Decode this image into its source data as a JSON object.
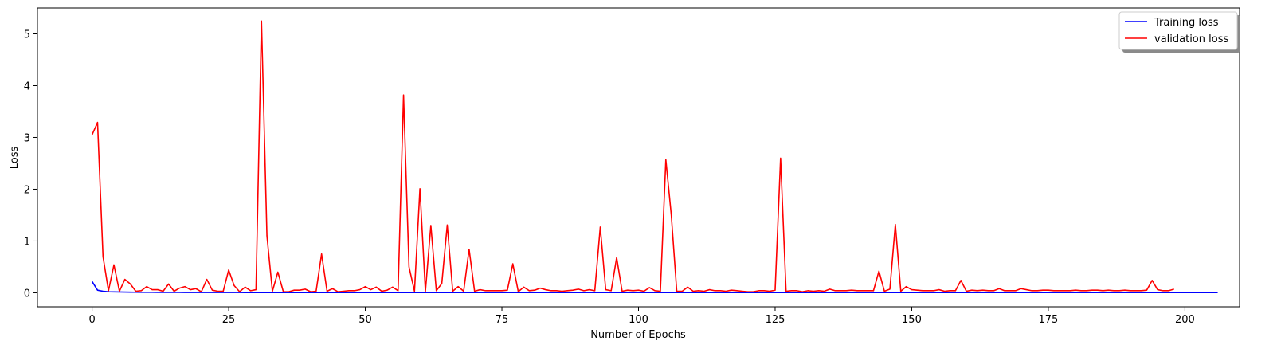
{
  "chart_data": {
    "type": "line",
    "title": "",
    "xlabel": "Number of Epochs",
    "ylabel": "Loss",
    "xlim": [
      -10,
      210
    ],
    "ylim": [
      -0.27,
      5.5
    ],
    "xticks": [
      0,
      25,
      50,
      75,
      100,
      125,
      150,
      175,
      200
    ],
    "yticks": [
      0,
      1,
      2,
      3,
      4,
      5
    ],
    "grid": false,
    "legend_position": "top-right",
    "series": [
      {
        "name": "Training loss",
        "color": "#0000ff",
        "x_start": 0,
        "values": [
          0.22,
          0.05,
          0.03,
          0.02,
          0.018,
          0.015,
          0.013,
          0.012,
          0.011,
          0.01,
          0.009,
          0.009,
          0.008,
          0.008,
          0.007,
          0.007,
          0.007,
          0.006,
          0.006,
          0.006,
          0.006,
          0.005,
          0.005,
          0.005,
          0.005,
          0.005,
          0.005,
          0.005,
          0.004,
          0.004,
          0.004,
          0.004,
          0.004,
          0.004,
          0.004,
          0.004,
          0.004,
          0.004,
          0.004,
          0.003,
          0.003,
          0.003,
          0.003,
          0.003,
          0.003,
          0.003,
          0.003,
          0.003,
          0.003,
          0.003,
          0.003,
          0.003,
          0.003,
          0.003,
          0.003,
          0.003,
          0.003,
          0.003,
          0.003,
          0.003,
          0.003,
          0.003,
          0.003,
          0.003,
          0.003,
          0.003,
          0.003,
          0.003,
          0.003,
          0.003,
          0.003,
          0.003,
          0.003,
          0.003,
          0.003,
          0.003,
          0.003,
          0.003,
          0.003,
          0.003,
          0.003,
          0.003,
          0.003,
          0.003,
          0.003,
          0.003,
          0.003,
          0.003,
          0.003,
          0.003,
          0.003,
          0.003,
          0.003,
          0.003,
          0.003,
          0.003,
          0.003,
          0.003,
          0.003,
          0.003,
          0.003,
          0.003,
          0.003,
          0.003,
          0.003,
          0.003,
          0.003,
          0.003,
          0.003,
          0.003,
          0.003,
          0.003,
          0.003,
          0.003,
          0.003,
          0.003,
          0.003,
          0.003,
          0.003,
          0.003,
          0.003,
          0.003,
          0.003,
          0.003,
          0.003,
          0.003,
          0.003,
          0.003,
          0.003,
          0.003,
          0.003,
          0.003,
          0.003,
          0.003,
          0.003,
          0.003,
          0.003,
          0.003,
          0.003,
          0.003,
          0.003,
          0.003,
          0.003,
          0.003,
          0.003,
          0.003,
          0.003,
          0.003,
          0.003,
          0.003,
          0.003,
          0.003,
          0.003,
          0.003,
          0.003,
          0.003,
          0.003,
          0.003,
          0.003,
          0.003,
          0.003,
          0.003,
          0.003,
          0.003,
          0.003,
          0.003,
          0.003,
          0.003,
          0.003,
          0.003,
          0.003,
          0.003,
          0.003,
          0.003,
          0.003,
          0.003,
          0.003,
          0.003,
          0.003,
          0.003,
          0.003,
          0.003,
          0.003,
          0.003,
          0.003,
          0.003,
          0.003,
          0.003,
          0.003,
          0.003,
          0.003,
          0.003,
          0.003,
          0.003,
          0.003,
          0.003,
          0.003,
          0.003,
          0.003,
          0.003,
          0.003,
          0.003,
          0.003,
          0.003,
          0.003,
          0.003,
          0.003
        ]
      },
      {
        "name": "validation loss",
        "color": "#ff0000",
        "x_start": 0,
        "values": [
          3.05,
          3.29,
          0.7,
          0.04,
          0.54,
          0.03,
          0.26,
          0.17,
          0.03,
          0.04,
          0.12,
          0.06,
          0.06,
          0.03,
          0.17,
          0.03,
          0.09,
          0.12,
          0.06,
          0.08,
          0.02,
          0.26,
          0.05,
          0.03,
          0.03,
          0.44,
          0.14,
          0.02,
          0.11,
          0.04,
          0.06,
          5.25,
          1.1,
          0.03,
          0.4,
          0.02,
          0.02,
          0.05,
          0.05,
          0.07,
          0.02,
          0.03,
          0.75,
          0.03,
          0.08,
          0.02,
          0.03,
          0.04,
          0.04,
          0.06,
          0.12,
          0.06,
          0.11,
          0.03,
          0.05,
          0.11,
          0.04,
          3.82,
          0.5,
          0.03,
          2.01,
          0.03,
          1.3,
          0.04,
          0.18,
          1.31,
          0.03,
          0.12,
          0.03,
          0.84,
          0.03,
          0.06,
          0.04,
          0.04,
          0.04,
          0.04,
          0.05,
          0.56,
          0.02,
          0.11,
          0.04,
          0.05,
          0.09,
          0.06,
          0.04,
          0.04,
          0.03,
          0.04,
          0.05,
          0.07,
          0.04,
          0.06,
          0.04,
          1.27,
          0.06,
          0.04,
          0.68,
          0.03,
          0.05,
          0.04,
          0.05,
          0.03,
          0.1,
          0.04,
          0.03,
          2.57,
          1.5,
          0.03,
          0.03,
          0.11,
          0.03,
          0.04,
          0.03,
          0.06,
          0.04,
          0.04,
          0.03,
          0.05,
          0.04,
          0.03,
          0.02,
          0.02,
          0.04,
          0.04,
          0.03,
          0.05,
          2.6,
          0.03,
          0.04,
          0.04,
          0.02,
          0.04,
          0.03,
          0.04,
          0.03,
          0.07,
          0.04,
          0.04,
          0.04,
          0.05,
          0.04,
          0.04,
          0.04,
          0.04,
          0.42,
          0.03,
          0.07,
          1.32,
          0.03,
          0.12,
          0.06,
          0.05,
          0.04,
          0.04,
          0.04,
          0.06,
          0.03,
          0.04,
          0.04,
          0.24,
          0.03,
          0.05,
          0.04,
          0.05,
          0.04,
          0.04,
          0.08,
          0.04,
          0.04,
          0.04,
          0.08,
          0.06,
          0.04,
          0.04,
          0.05,
          0.05,
          0.04,
          0.04,
          0.04,
          0.04,
          0.05,
          0.04,
          0.04,
          0.05,
          0.05,
          0.04,
          0.05,
          0.04,
          0.04,
          0.05,
          0.04,
          0.04,
          0.04,
          0.05,
          0.24,
          0.06,
          0.04,
          0.04,
          0.07
        ]
      }
    ]
  }
}
